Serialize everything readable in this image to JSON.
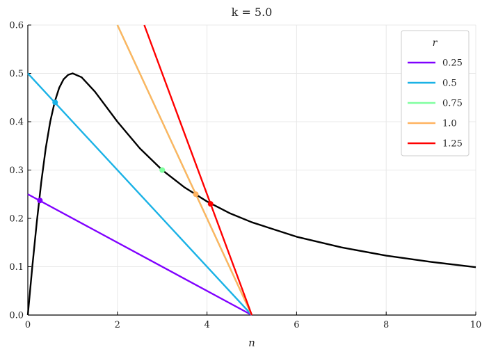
{
  "chart_data": {
    "type": "line",
    "title": "k = 5.0",
    "xlabel": "n",
    "ylabel": "",
    "xlim": [
      0,
      10
    ],
    "ylim": [
      0,
      0.6
    ],
    "xticks": [
      "0",
      "2",
      "4",
      "6",
      "8",
      "10"
    ],
    "yticks": [
      "0.0",
      "0.1",
      "0.2",
      "0.3",
      "0.4",
      "0.5",
      "0.6"
    ],
    "grid": true,
    "legend": {
      "title": "r",
      "placement": "top-right"
    },
    "curve": {
      "color": "#000000",
      "x": [
        0.0,
        0.05,
        0.1,
        0.2,
        0.3,
        0.4,
        0.5,
        0.6,
        0.7,
        0.8,
        0.9,
        1.0,
        1.2,
        1.5,
        2.0,
        2.5,
        3.0,
        3.5,
        4.0,
        4.5,
        5.0,
        6.0,
        7.0,
        8.0,
        9.0,
        10.0
      ],
      "y": [
        0.0,
        0.05,
        0.1,
        0.192,
        0.275,
        0.345,
        0.4,
        0.441,
        0.47,
        0.488,
        0.497,
        0.5,
        0.492,
        0.462,
        0.4,
        0.345,
        0.3,
        0.264,
        0.235,
        0.211,
        0.192,
        0.162,
        0.14,
        0.123,
        0.11,
        0.099
      ]
    },
    "series": [
      {
        "name": "0.25",
        "color": "#8000ff",
        "x": [
          0,
          5
        ],
        "y": [
          0.25,
          0.0
        ],
        "marker": [
          0.27,
          0.237
        ]
      },
      {
        "name": "0.5",
        "color": "#1ab2e6",
        "x": [
          0,
          5
        ],
        "y": [
          0.5,
          0.0
        ],
        "marker": [
          0.61,
          0.44
        ]
      },
      {
        "name": "0.75",
        "color": "#80ff9f",
        "x": [
          2.0,
          5
        ],
        "y": [
          0.6,
          0.0
        ],
        "marker": [
          3.0,
          0.3
        ]
      },
      {
        "name": "1.0",
        "color": "#ffb360",
        "x": [
          2.0,
          5
        ],
        "y": [
          0.6,
          0.0
        ],
        "marker": [
          3.75,
          0.25
        ]
      },
      {
        "name": "1.25",
        "color": "#ff0000",
        "x": [
          2.6,
          5
        ],
        "y": [
          0.6,
          0.0
        ],
        "marker": [
          4.08,
          0.23
        ]
      }
    ]
  }
}
